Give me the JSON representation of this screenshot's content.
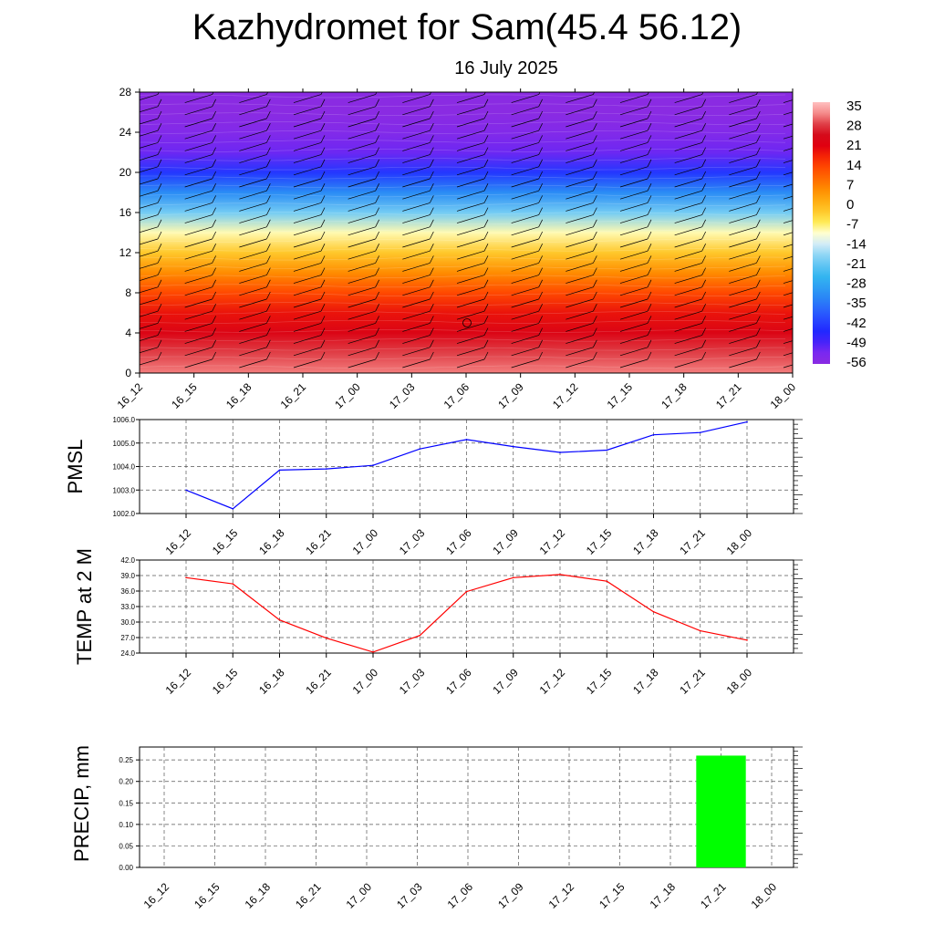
{
  "title": "Kazhydromet for Sam(45.4 56.12)",
  "date": "16 July 2025",
  "time_labels": [
    "16_12",
    "16_15",
    "16_18",
    "16_21",
    "17_00",
    "17_03",
    "17_06",
    "17_09",
    "17_12",
    "17_15",
    "17_18",
    "17_21",
    "18_00"
  ],
  "chart_data": [
    {
      "type": "heatmap",
      "title": "Kazhydromet for Sam(45.4 56.12)",
      "x": [
        "16_12",
        "16_15",
        "16_18",
        "16_21",
        "17_00",
        "17_03",
        "17_06",
        "17_09",
        "17_12",
        "17_15",
        "17_18",
        "17_21",
        "18_00"
      ],
      "y_ticks": [
        0,
        4,
        8,
        12,
        16,
        20,
        24,
        28
      ],
      "ylim": [
        0,
        28
      ],
      "colorbar_labels": [
        "35",
        "28",
        "21",
        "14",
        "7",
        "0",
        "-7",
        "-14",
        "-21",
        "-28",
        "-35",
        "-42",
        "-49",
        "-56"
      ],
      "colorbar_range": [
        -60,
        36
      ],
      "temperature_profile": {
        "height": [
          0,
          2,
          4,
          6,
          8,
          10,
          12,
          14,
          16,
          18,
          20,
          22,
          24,
          26,
          28
        ],
        "temperature": [
          31,
          28,
          22,
          18,
          12,
          4,
          -4,
          -11,
          -22,
          -35,
          -46,
          -55,
          -58,
          -60,
          -60
        ]
      }
    },
    {
      "type": "line",
      "ylabel": "PMSL",
      "x": [
        "16_12",
        "16_15",
        "16_18",
        "16_21",
        "17_00",
        "17_03",
        "17_06",
        "17_09",
        "17_12",
        "17_15",
        "17_18",
        "17_21",
        "18_00"
      ],
      "y_ticks": [
        "1002.0",
        "1003.0",
        "1004.0",
        "1005.0",
        "1006.0"
      ],
      "ylim": [
        1002,
        1006
      ],
      "values": [
        1003.0,
        1002.2,
        1003.85,
        1003.9,
        1004.05,
        1004.75,
        1005.15,
        1004.85,
        1004.6,
        1004.7,
        1005.35,
        1005.45,
        1005.9
      ],
      "color": "#0000ff",
      "grid": true
    },
    {
      "type": "line",
      "ylabel": "TEMP at 2 M",
      "x": [
        "16_12",
        "16_15",
        "16_18",
        "16_21",
        "17_00",
        "17_03",
        "17_06",
        "17_09",
        "17_12",
        "17_15",
        "17_18",
        "17_21",
        "18_00"
      ],
      "y_ticks": [
        "24.0",
        "27.0",
        "30.0",
        "33.0",
        "36.0",
        "39.0",
        "42.0"
      ],
      "ylim": [
        24,
        42
      ],
      "values": [
        38.6,
        37.4,
        30.4,
        26.9,
        24.2,
        27.4,
        35.9,
        38.6,
        39.2,
        37.9,
        32.0,
        28.3,
        26.5
      ],
      "color": "#ff0000",
      "grid": true
    },
    {
      "type": "bar",
      "ylabel": "PRECIP, mm",
      "categories": [
        "16_12",
        "16_15",
        "16_18",
        "16_21",
        "17_00",
        "17_03",
        "17_06",
        "17_09",
        "17_12",
        "17_15",
        "17_18",
        "17_21",
        "18_00"
      ],
      "y_ticks": [
        "0.00",
        "0.05",
        "0.10",
        "0.15",
        "0.20",
        "0.25"
      ],
      "ylim": [
        0,
        0.28
      ],
      "values": [
        0,
        0,
        0,
        0,
        0,
        0,
        0,
        0,
        0,
        0,
        0,
        0.26,
        0
      ],
      "color": "#00ff00",
      "grid": true
    }
  ]
}
